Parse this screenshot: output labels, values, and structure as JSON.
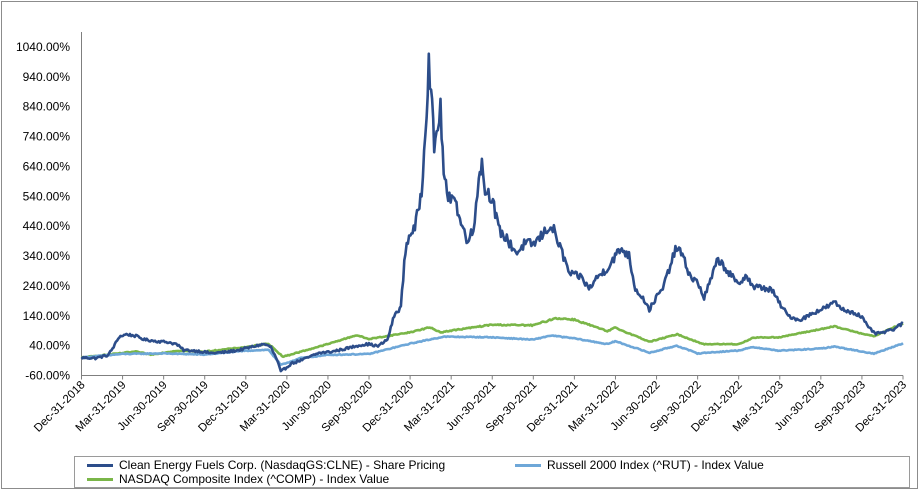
{
  "chart_data": {
    "type": "line",
    "y_ticks": [
      "1040.00%",
      "940.00%",
      "840.00%",
      "740.00%",
      "640.00%",
      "540.00%",
      "440.00%",
      "340.00%",
      "240.00%",
      "140.00%",
      "40.00%",
      "-60.00%"
    ],
    "y_tick_values": [
      1040,
      940,
      840,
      740,
      640,
      540,
      440,
      340,
      240,
      140,
      40,
      -60
    ],
    "ylim": [
      -60,
      1090
    ],
    "x_ticks": [
      "Dec-31-2018",
      "Mar-31-2019",
      "Jun-30-2019",
      "Sep-30-2019",
      "Dec-31-2019",
      "Mar-31-2020",
      "Jun-30-2020",
      "Sep-30-2020",
      "Dec-31-2020",
      "Mar-31-2021",
      "Jun-30-2021",
      "Sep-30-2021",
      "Dec-31-2021",
      "Mar-31-2022",
      "Jun-30-2022",
      "Sep-30-2022",
      "Dec-31-2022",
      "Mar-31-2023",
      "Jun-30-2023",
      "Sep-30-2023",
      "Dec-31-2023"
    ],
    "xlim": [
      "2018-12-31",
      "2023-12-31"
    ],
    "grid": false,
    "legend_position": "bottom",
    "series": [
      {
        "name": "Clean Energy Fuels Corp. (NasdaqGS:CLNE) - Share Pricing",
        "color": "#2c4d8a",
        "points": [
          [
            "2018-12-31",
            0
          ],
          [
            "2019-01-31",
            -2
          ],
          [
            "2019-02-28",
            8
          ],
          [
            "2019-03-10",
            30
          ],
          [
            "2019-03-25",
            70
          ],
          [
            "2019-04-10",
            78
          ],
          [
            "2019-05-01",
            72
          ],
          [
            "2019-05-20",
            60
          ],
          [
            "2019-06-15",
            55
          ],
          [
            "2019-07-10",
            52
          ],
          [
            "2019-07-30",
            45
          ],
          [
            "2019-08-15",
            25
          ],
          [
            "2019-09-15",
            22
          ],
          [
            "2019-10-15",
            15
          ],
          [
            "2019-11-15",
            18
          ],
          [
            "2019-12-15",
            25
          ],
          [
            "2020-01-20",
            38
          ],
          [
            "2020-02-10",
            45
          ],
          [
            "2020-02-25",
            35
          ],
          [
            "2020-03-10",
            -10
          ],
          [
            "2020-03-18",
            -48
          ],
          [
            "2020-04-10",
            -20
          ],
          [
            "2020-05-10",
            -5
          ],
          [
            "2020-06-10",
            15
          ],
          [
            "2020-07-10",
            20
          ],
          [
            "2020-08-10",
            30
          ],
          [
            "2020-09-10",
            42
          ],
          [
            "2020-09-30",
            45
          ],
          [
            "2020-10-20",
            38
          ],
          [
            "2020-11-10",
            60
          ],
          [
            "2020-11-25",
            140
          ],
          [
            "2020-12-10",
            170
          ],
          [
            "2020-12-20",
            360
          ],
          [
            "2020-12-31",
            420
          ],
          [
            "2021-01-10",
            430
          ],
          [
            "2021-01-25",
            560
          ],
          [
            "2021-02-05",
            840
          ],
          [
            "2021-02-10",
            987
          ],
          [
            "2021-02-15",
            900
          ],
          [
            "2021-02-22",
            700
          ],
          [
            "2021-03-02",
            780
          ],
          [
            "2021-03-08",
            830
          ],
          [
            "2021-03-15",
            620
          ],
          [
            "2021-03-25",
            520
          ],
          [
            "2021-04-05",
            560
          ],
          [
            "2021-04-20",
            460
          ],
          [
            "2021-05-05",
            400
          ],
          [
            "2021-05-20",
            420
          ],
          [
            "2021-06-01",
            610
          ],
          [
            "2021-06-08",
            650
          ],
          [
            "2021-06-15",
            560
          ],
          [
            "2021-06-30",
            540
          ],
          [
            "2021-07-15",
            430
          ],
          [
            "2021-08-05",
            390
          ],
          [
            "2021-08-25",
            350
          ],
          [
            "2021-09-10",
            380
          ],
          [
            "2021-10-01",
            380
          ],
          [
            "2021-10-20",
            410
          ],
          [
            "2021-11-05",
            440
          ],
          [
            "2021-11-15",
            425
          ],
          [
            "2021-12-01",
            360
          ],
          [
            "2021-12-20",
            280
          ],
          [
            "2022-01-15",
            270
          ],
          [
            "2022-02-01",
            230
          ],
          [
            "2022-02-20",
            270
          ],
          [
            "2022-03-15",
            300
          ],
          [
            "2022-03-31",
            340
          ],
          [
            "2022-04-15",
            365
          ],
          [
            "2022-05-01",
            340
          ],
          [
            "2022-05-15",
            230
          ],
          [
            "2022-06-01",
            200
          ],
          [
            "2022-06-15",
            160
          ],
          [
            "2022-06-30",
            200
          ],
          [
            "2022-07-15",
            230
          ],
          [
            "2022-08-01",
            310
          ],
          [
            "2022-08-15",
            370
          ],
          [
            "2022-08-25",
            350
          ],
          [
            "2022-09-15",
            270
          ],
          [
            "2022-10-01",
            250
          ],
          [
            "2022-10-15",
            200
          ],
          [
            "2022-11-01",
            270
          ],
          [
            "2022-11-15",
            330
          ],
          [
            "2022-12-01",
            300
          ],
          [
            "2022-12-31",
            240
          ],
          [
            "2023-01-15",
            280
          ],
          [
            "2023-02-01",
            235
          ],
          [
            "2023-02-20",
            235
          ],
          [
            "2023-03-15",
            225
          ],
          [
            "2023-04-01",
            180
          ],
          [
            "2023-04-20",
            140
          ],
          [
            "2023-05-15",
            125
          ],
          [
            "2023-06-15",
            150
          ],
          [
            "2023-07-15",
            170
          ],
          [
            "2023-08-01",
            185
          ],
          [
            "2023-08-20",
            160
          ],
          [
            "2023-09-15",
            150
          ],
          [
            "2023-10-01",
            135
          ],
          [
            "2023-10-15",
            100
          ],
          [
            "2023-11-01",
            80
          ],
          [
            "2023-11-20",
            85
          ],
          [
            "2023-12-10",
            95
          ],
          [
            "2023-12-31",
            115
          ]
        ]
      },
      {
        "name": "Russell 2000 Index (^RUT) - Index Value",
        "color": "#6ea7d8",
        "points": [
          [
            "2018-12-31",
            0
          ],
          [
            "2019-03-31",
            12
          ],
          [
            "2019-06-30",
            14
          ],
          [
            "2019-09-30",
            10
          ],
          [
            "2019-12-31",
            23
          ],
          [
            "2020-02-20",
            26
          ],
          [
            "2020-03-18",
            -25
          ],
          [
            "2020-04-30",
            -2
          ],
          [
            "2020-06-30",
            9
          ],
          [
            "2020-09-30",
            12
          ],
          [
            "2020-12-31",
            47
          ],
          [
            "2021-03-15",
            70
          ],
          [
            "2021-06-30",
            68
          ],
          [
            "2021-09-30",
            60
          ],
          [
            "2021-11-08",
            74
          ],
          [
            "2021-12-31",
            64
          ],
          [
            "2022-03-15",
            45
          ],
          [
            "2022-03-31",
            55
          ],
          [
            "2022-06-16",
            16
          ],
          [
            "2022-08-15",
            40
          ],
          [
            "2022-09-30",
            14
          ],
          [
            "2022-12-31",
            24
          ],
          [
            "2023-02-01",
            35
          ],
          [
            "2023-03-31",
            23
          ],
          [
            "2023-06-30",
            30
          ],
          [
            "2023-07-31",
            37
          ],
          [
            "2023-10-27",
            13
          ],
          [
            "2023-12-31",
            48
          ]
        ]
      },
      {
        "name": "NASDAQ Composite Index (^COMP) - Index Value",
        "color": "#7ab648",
        "points": [
          [
            "2018-12-31",
            0
          ],
          [
            "2019-04-30",
            20
          ],
          [
            "2019-06-03",
            10
          ],
          [
            "2019-07-31",
            23
          ],
          [
            "2019-09-30",
            20
          ],
          [
            "2019-12-31",
            35
          ],
          [
            "2020-02-19",
            47
          ],
          [
            "2020-03-23",
            3
          ],
          [
            "2020-06-30",
            45
          ],
          [
            "2020-09-02",
            75
          ],
          [
            "2020-09-30",
            62
          ],
          [
            "2020-12-31",
            85
          ],
          [
            "2021-02-12",
            101
          ],
          [
            "2021-03-08",
            85
          ],
          [
            "2021-06-30",
            110
          ],
          [
            "2021-09-30",
            108
          ],
          [
            "2021-11-19",
            132
          ],
          [
            "2021-12-31",
            127
          ],
          [
            "2022-03-14",
            88
          ],
          [
            "2022-03-31",
            100
          ],
          [
            "2022-06-16",
            53
          ],
          [
            "2022-08-16",
            78
          ],
          [
            "2022-10-13",
            45
          ],
          [
            "2022-12-31",
            45
          ],
          [
            "2023-02-02",
            67
          ],
          [
            "2023-03-31",
            68
          ],
          [
            "2023-07-31",
            104
          ],
          [
            "2023-10-27",
            71
          ],
          [
            "2023-12-31",
            115
          ]
        ]
      }
    ]
  }
}
